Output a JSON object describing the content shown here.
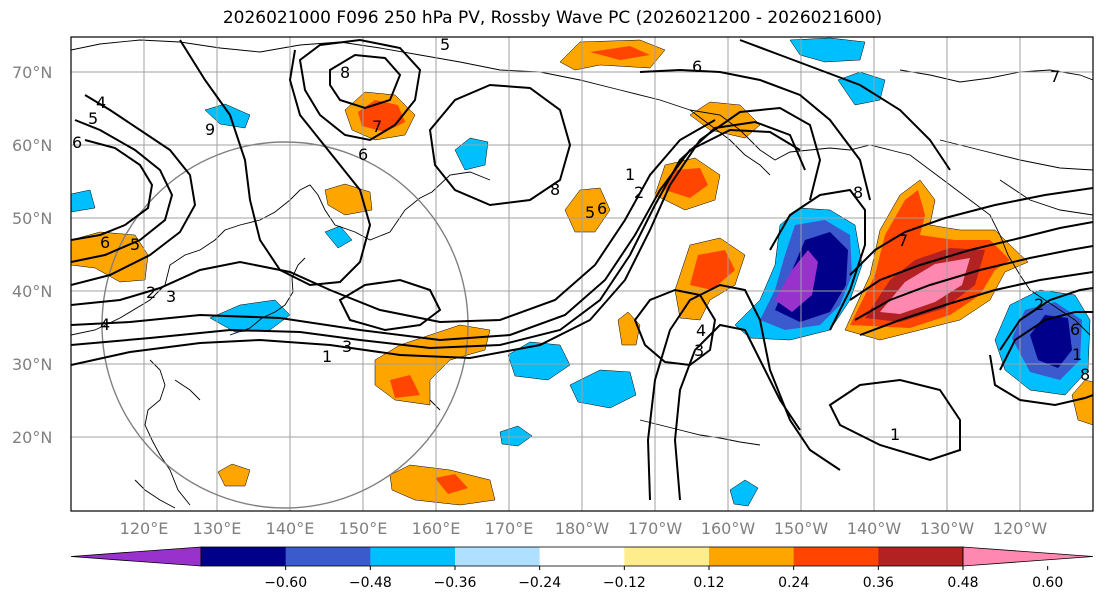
{
  "title": "2026021000 F096 250 hPa PV, Rossby Wave PC (2026021200 - 2026021600)",
  "lat_labels": [
    "70°N",
    "60°N",
    "50°N",
    "40°N",
    "30°N",
    "20°N"
  ],
  "lon_labels": [
    "120°E",
    "130°E",
    "140°E",
    "150°E",
    "160°E",
    "170°E",
    "180°W",
    "170°W",
    "160°W",
    "150°W",
    "140°W",
    "130°W",
    "120°W"
  ],
  "colorbar": {
    "colors": [
      "#9932cc",
      "#00008b",
      "#3a5acd",
      "#00bfff",
      "#b0e0ff",
      "#ffffff",
      "#ffec8b",
      "#ffa500",
      "#ff4500",
      "#b22222",
      "#ff88b0"
    ],
    "tick_labels": [
      "−0.60",
      "−0.48",
      "−0.36",
      "−0.24",
      "−0.12",
      "0.12",
      "0.24",
      "0.36",
      "0.48",
      "0.60"
    ]
  },
  "contour_labels": [
    "5",
    "8",
    "6",
    "7",
    "4",
    "5",
    "6",
    "9",
    "8",
    "5",
    "6",
    "8",
    "6",
    "6",
    "7",
    "2",
    "4",
    "1",
    "3",
    "4",
    "3",
    "1",
    "1",
    "3",
    "2",
    "7",
    "6",
    "1",
    "8",
    "2",
    "5"
  ],
  "colors": {
    "contour": "#000000",
    "coastline": "#000000",
    "grid": "#a0a0a0",
    "circle": "#808080"
  }
}
